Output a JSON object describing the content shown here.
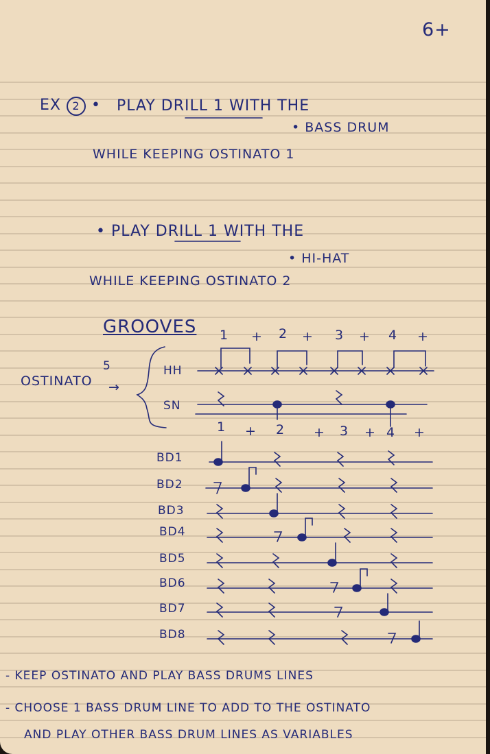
{
  "page_number": "6+",
  "exercise": {
    "label": "EX",
    "number": "2",
    "line1": "PLAY DRILL 1 WITH THE",
    "bullet1": "BASS DRUM",
    "line2": "WHILE KEEPING OSTINATO 1",
    "line3": "PLAY DRILL 1 WITH THE",
    "bullet2": "HI-HAT",
    "line4": "WHILE KEEPING OSTINATO 2"
  },
  "grooves": {
    "title": "GROOVES",
    "counts_top": [
      "1",
      "+",
      "2",
      "+",
      "3",
      "+",
      "4",
      "+"
    ],
    "ostinato_label": "OSTINATO",
    "ostinato_number": "5",
    "arrow": "→",
    "hh_label": "HH",
    "sn_label": "SN",
    "counts_mid": [
      "1",
      "+",
      "2",
      "+",
      "3",
      "+",
      "4",
      "+"
    ],
    "bd_lines": [
      "BD1",
      "BD2",
      "BD3",
      "BD4",
      "BD5",
      "BD6",
      "BD7",
      "BD8"
    ]
  },
  "notes": [
    "- KEEP OSTINATO AND PLAY BASS DRUMS LINES",
    "- CHOOSE 1 BASS DRUM LINE TO ADD TO THE OSTINATO",
    "AND PLAY OTHER BASS DRUM LINES AS VARIABLES"
  ]
}
